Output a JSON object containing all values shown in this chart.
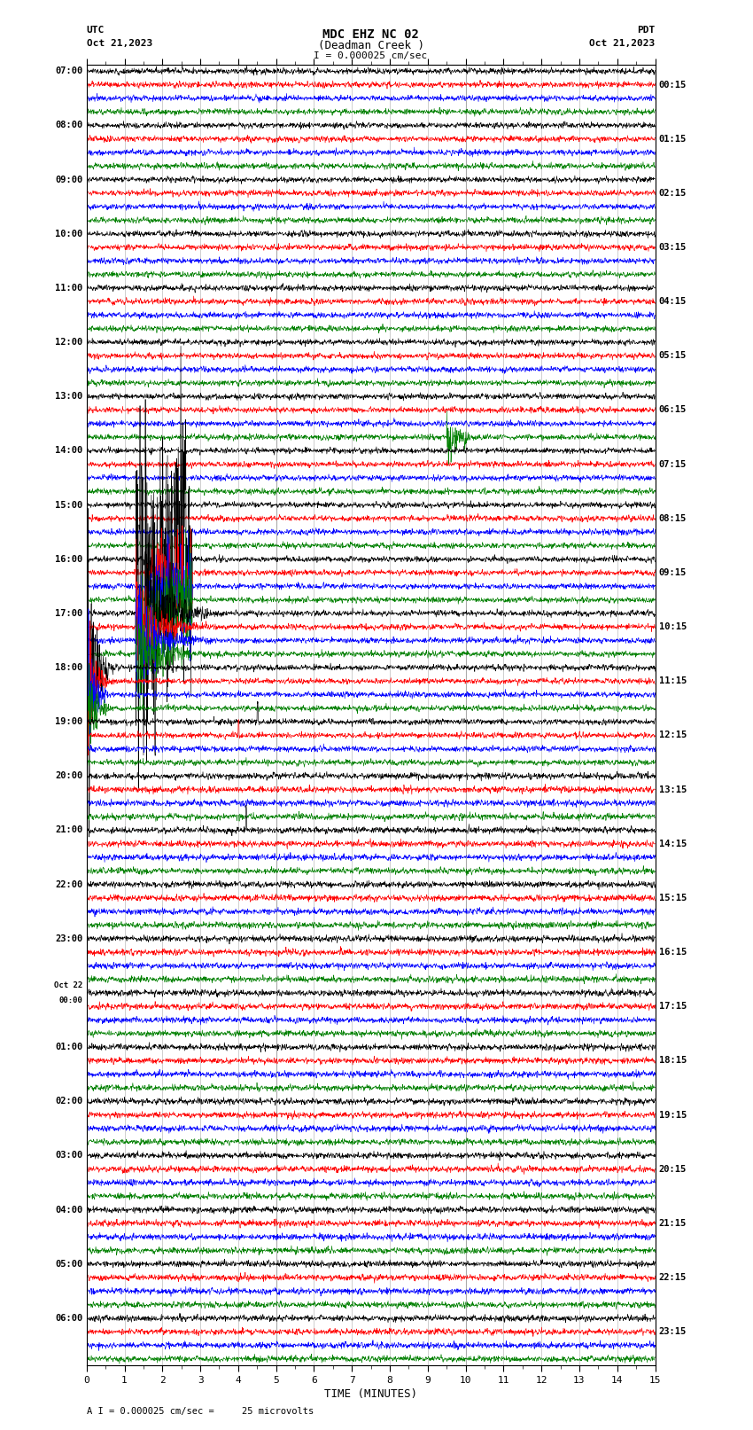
{
  "title_line1": "MDC EHZ NC 02",
  "title_line2": "(Deadman Creek )",
  "title_line3": "I = 0.000025 cm/sec",
  "left_label_line1": "UTC",
  "left_label_line2": "Oct 21,2023",
  "right_label_line1": "PDT",
  "right_label_line2": "Oct 21,2023",
  "xlabel": "TIME (MINUTES)",
  "bottom_note": "A I = 0.000025 cm/sec =     25 microvolts",
  "x_min": 0,
  "x_max": 15,
  "x_ticks": [
    0,
    1,
    2,
    3,
    4,
    5,
    6,
    7,
    8,
    9,
    10,
    11,
    12,
    13,
    14,
    15
  ],
  "trace_colors": [
    "black",
    "red",
    "blue",
    "green"
  ],
  "bg_color": "#ffffff",
  "grid_color": "#888888",
  "fig_width": 8.5,
  "fig_height": 16.13,
  "left_times": [
    "07:00",
    "08:00",
    "09:00",
    "10:00",
    "11:00",
    "12:00",
    "13:00",
    "14:00",
    "15:00",
    "16:00",
    "17:00",
    "18:00",
    "19:00",
    "20:00",
    "21:00",
    "22:00",
    "23:00",
    "Oct 22|00:00",
    "01:00",
    "02:00",
    "03:00",
    "04:00",
    "05:00",
    "06:00"
  ],
  "right_times": [
    "00:15",
    "01:15",
    "02:15",
    "03:15",
    "04:15",
    "05:15",
    "06:15",
    "07:15",
    "08:15",
    "09:15",
    "10:15",
    "11:15",
    "12:15",
    "13:15",
    "14:15",
    "15:15",
    "16:15",
    "17:15",
    "18:15",
    "19:15",
    "20:15",
    "21:15",
    "22:15",
    "23:15"
  ],
  "n_hour_blocks": 24,
  "traces_per_block": 4,
  "dpi": 100
}
